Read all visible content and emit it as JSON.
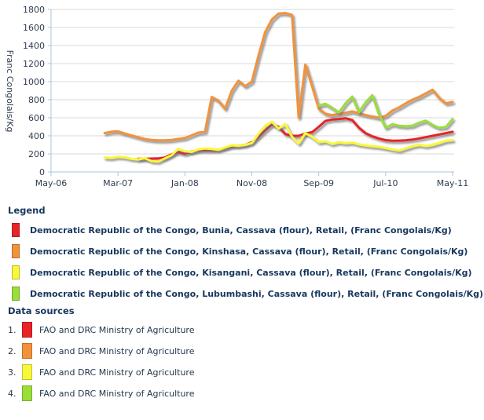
{
  "chart": {
    "y_axis_title": "Franc Congolais/Kg",
    "colors": {
      "grid": "#dadada",
      "axis": "#a9c6dc",
      "tick_text": "#2e3b50"
    }
  },
  "chart_data": {
    "type": "line",
    "title": "",
    "xlabel": "",
    "ylabel": "Franc Congolais/Kg",
    "ylim": [
      0,
      1800
    ],
    "y_ticks": [
      0,
      200,
      400,
      600,
      800,
      1000,
      1200,
      1400,
      1600,
      1800
    ],
    "grid": true,
    "x_months_start": "2006-05",
    "x_months_end": "2011-05",
    "x_tick_indices": [
      0,
      10,
      20,
      30,
      40,
      50,
      60
    ],
    "x_tick_labels": [
      "May-06",
      "Mar-07",
      "Jan-08",
      "Nov-08",
      "Sep-09",
      "Jul-10",
      "May-11"
    ],
    "legend_position": "bottom",
    "series": [
      {
        "id": "bunia",
        "name": "Democratic Republic of the Congo, Bunia, Cassava (flour), Retail, (Franc Congolais/Kg)",
        "color": "#e82327",
        "start_index": 13,
        "start_month": "2007-06",
        "values": [
          145,
          145,
          148,
          150,
          160,
          195,
          220,
          200,
          225,
          240,
          240,
          240,
          245,
          265,
          285,
          290,
          300,
          330,
          390,
          460,
          525,
          500,
          420,
          400,
          400,
          425,
          440,
          500,
          565,
          580,
          585,
          595,
          575,
          490,
          430,
          395,
          370,
          352,
          345,
          347,
          350,
          358,
          370,
          385,
          400,
          415,
          430,
          445
        ]
      },
      {
        "id": "kinshasa",
        "name": "Democratic Republic of the Congo, Kinshasa, Cassava (flour), Retail, (Franc Congolais/Kg)",
        "color": "#f2923a",
        "start_index": 8,
        "start_month": "2007-01",
        "values": [
          430,
          445,
          450,
          425,
          405,
          385,
          365,
          355,
          350,
          350,
          355,
          365,
          375,
          405,
          435,
          445,
          830,
          790,
          700,
          900,
          1010,
          950,
          1000,
          1290,
          1550,
          1690,
          1755,
          1760,
          1740,
          600,
          1190,
          950,
          700,
          645,
          630,
          640,
          655,
          670,
          650,
          630,
          615,
          600,
          620,
          680,
          715,
          760,
          800,
          830,
          870,
          910,
          820,
          760,
          775
        ]
      },
      {
        "id": "kisangani",
        "name": "Democratic Republic of the Congo, Kisangani, Cassava (flour), Retail, (Franc Congolais/Kg)",
        "color": "#f8f83a",
        "start_index": 8,
        "start_month": "2007-01",
        "values": [
          160,
          155,
          168,
          162,
          145,
          138,
          152,
          120,
          115,
          150,
          185,
          255,
          230,
          222,
          250,
          260,
          255,
          245,
          270,
          295,
          290,
          300,
          320,
          420,
          510,
          555,
          480,
          530,
          390,
          315,
          430,
          390,
          330,
          340,
          310,
          330,
          318,
          325,
          305,
          295,
          285,
          278,
          265,
          250,
          237,
          262,
          285,
          300,
          287,
          300,
          322,
          345,
          352
        ]
      },
      {
        "id": "lubumbashi",
        "name": "Democratic Republic of the Congo, Lubumbashi, Cassava (flour), Retail, (Franc Congolais/Kg)",
        "color": "#9ade3a",
        "start_index": 40,
        "start_month": "2009-09",
        "values": [
          735,
          755,
          710,
          658,
          760,
          835,
          660,
          770,
          850,
          640,
          490,
          528,
          512,
          505,
          512,
          545,
          568,
          520,
          490,
          498,
          585
        ]
      }
    ]
  },
  "legend": {
    "heading": "Legend",
    "items": [
      {
        "label": "Democratic Republic of the Congo, Bunia, Cassava (flour), Retail, (Franc Congolais/Kg)",
        "color": "#e82327"
      },
      {
        "label": "Democratic Republic of the Congo, Kinshasa, Cassava (flour), Retail, (Franc Congolais/Kg)",
        "color": "#f2923a"
      },
      {
        "label": "Democratic Republic of the Congo, Kisangani, Cassava (flour), Retail, (Franc Congolais/Kg)",
        "color": "#f8f83a"
      },
      {
        "label": "Democratic Republic of the Congo, Lubumbashi, Cassava (flour), Retail, (Franc Congolais/Kg)",
        "color": "#9ade3a"
      }
    ]
  },
  "data_sources": {
    "heading": "Data sources",
    "items": [
      {
        "number": "1.",
        "label": "FAO and DRC Ministry of Agriculture",
        "color": "#e82327"
      },
      {
        "number": "2.",
        "label": "FAO and DRC Ministry of Agriculture",
        "color": "#f2923a"
      },
      {
        "number": "3.",
        "label": "FAO and DRC Ministry of Agriculture",
        "color": "#f8f83a"
      },
      {
        "number": "4.",
        "label": "FAO and DRC Ministry of Agriculture",
        "color": "#9ade3a"
      }
    ]
  }
}
